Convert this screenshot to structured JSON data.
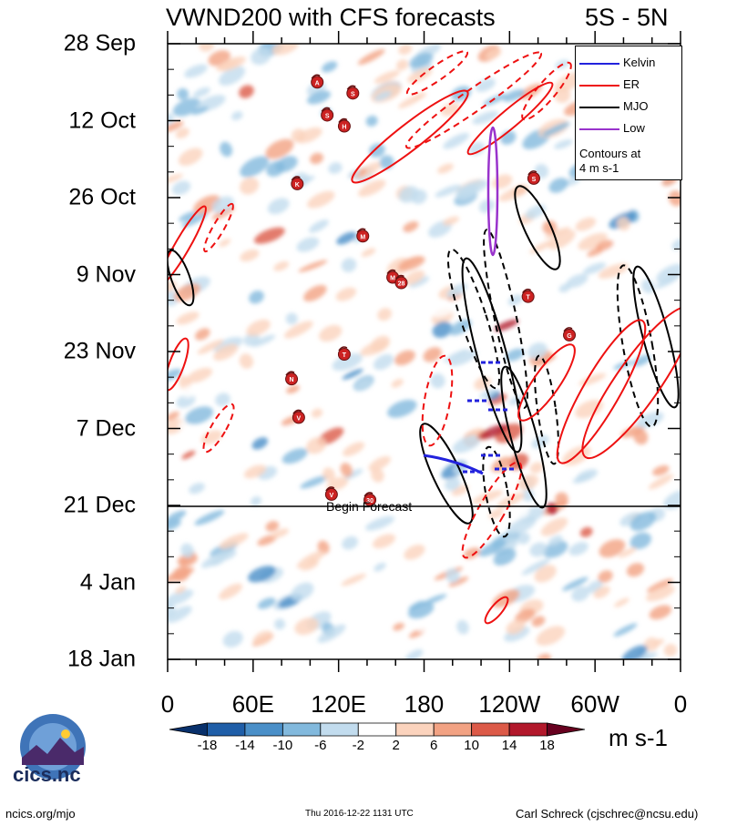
{
  "chart_data": {
    "type": "heatmap",
    "title": "VWND200 with CFS forecasts",
    "region": "5S - 5N",
    "units": "m s-1",
    "x_axis": {
      "labels": [
        "0",
        "60E",
        "120E",
        "180",
        "120W",
        "60W",
        "0"
      ],
      "values": [
        0,
        60,
        120,
        180,
        240,
        300,
        360
      ],
      "range": [
        0,
        360
      ]
    },
    "y_axis": {
      "labels": [
        "28 Sep",
        "12 Oct",
        "26 Oct",
        "9 Nov",
        "23 Nov",
        "7 Dec",
        "21 Dec",
        "4 Jan",
        "18 Jan"
      ],
      "day_offsets": [
        0,
        14,
        28,
        42,
        56,
        70,
        84,
        98,
        112
      ],
      "reversed": true
    },
    "colorbar": {
      "labels": [
        "-18",
        "-14",
        "-10",
        "-6",
        "-2",
        "2",
        "6",
        "10",
        "14",
        "18"
      ],
      "colors": [
        "#08306b",
        "#1f5ea8",
        "#4a8fc8",
        "#82b9dd",
        "#c2dcee",
        "#ffffff",
        "#fbd3bd",
        "#f2a283",
        "#dc5a48",
        "#b2182b",
        "#67001f"
      ]
    },
    "legend": {
      "items": [
        {
          "name": "Kelvin",
          "color": "#2222dd"
        },
        {
          "name": "ER",
          "color": "#ee1111"
        },
        {
          "name": "MJO",
          "color": "#000000"
        },
        {
          "name": "Low",
          "color": "#9933cc"
        }
      ],
      "note_line1": "Contours at",
      "note_line2": "4 m s-1"
    },
    "forecast_start": "21 Dec",
    "forecast_label": "Begin Forecast",
    "storm_markers": [
      {
        "label": "A",
        "lon": 105,
        "day": 7
      },
      {
        "label": "S",
        "lon": 130,
        "day": 9
      },
      {
        "label": "S",
        "lon": 112,
        "day": 13
      },
      {
        "label": "H",
        "lon": 124,
        "day": 15
      },
      {
        "label": "S",
        "lon": 257,
        "day": 24.5
      },
      {
        "label": "K",
        "lon": 91,
        "day": 25.5
      },
      {
        "label": "M",
        "lon": 137,
        "day": 35
      },
      {
        "label": "M",
        "lon": 158,
        "day": 42.5
      },
      {
        "label": "28",
        "lon": 164,
        "day": 43.5
      },
      {
        "label": "T",
        "lon": 253,
        "day": 46
      },
      {
        "label": "G",
        "lon": 282,
        "day": 53
      },
      {
        "label": "T",
        "lon": 124,
        "day": 56.5
      },
      {
        "label": "N",
        "lon": 87,
        "day": 61
      },
      {
        "label": "V",
        "lon": 92,
        "day": 68
      },
      {
        "label": "V",
        "lon": 115,
        "day": 82
      },
      {
        "label": "30",
        "lon": 142,
        "day": 83
      }
    ]
  },
  "footer": {
    "left": "ncics.org/mjo",
    "mid": "Thu 2016-12-22 1131 UTC",
    "right": "Carl Schreck (cjschrec@ncsu.edu)"
  },
  "logo": {
    "text": "cics.nc"
  }
}
